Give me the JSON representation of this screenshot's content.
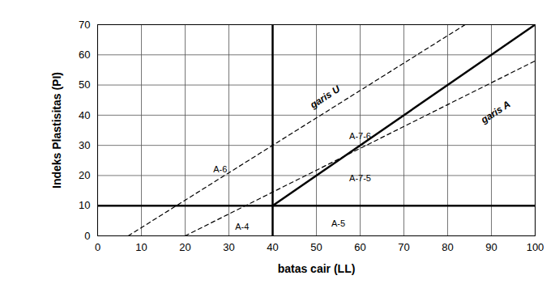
{
  "chart_data": {
    "type": "line",
    "x_label": "batas cair (LL)",
    "y_label": "Indeks Plastisitas (PI)",
    "xlim": [
      0,
      100
    ],
    "ylim": [
      0,
      70
    ],
    "xticks": [
      0,
      10,
      20,
      30,
      40,
      50,
      60,
      70,
      80,
      90,
      100
    ],
    "yticks": [
      0,
      10,
      20,
      30,
      40,
      50,
      60,
      70
    ],
    "grid": true,
    "series": [
      {
        "color": "#000000",
        "line_style": "dashed",
        "x": [
          7,
          84
        ],
        "values": [
          0,
          70
        ]
      },
      {
        "color": "#000000",
        "line_style": "dashed",
        "x": [
          20,
          100
        ],
        "values": [
          0,
          58
        ]
      },
      {
        "color": "#000000",
        "line_style": "solid",
        "x": [
          40,
          100
        ],
        "values": [
          10,
          70
        ]
      },
      {
        "color": "#000000",
        "line_style": "solid",
        "x": [
          40,
          40
        ],
        "values": [
          0,
          70
        ]
      },
      {
        "color": "#000000",
        "line_style": "solid",
        "x": [
          0,
          100
        ],
        "values": [
          10,
          10
        ]
      }
    ],
    "annotations": [
      {
        "text": "garis U",
        "x": 52,
        "y": 46
      },
      {
        "text": "garis A",
        "x": 91,
        "y": 41
      },
      {
        "text": "A-6",
        "x": 28,
        "y": 22
      },
      {
        "text": "A-4",
        "x": 33,
        "y": 3
      },
      {
        "text": "A-7-6",
        "x": 60,
        "y": 33
      },
      {
        "text": "A-7-5",
        "x": 60,
        "y": 19
      },
      {
        "text": "A-5",
        "x": 55,
        "y": 4
      }
    ]
  }
}
